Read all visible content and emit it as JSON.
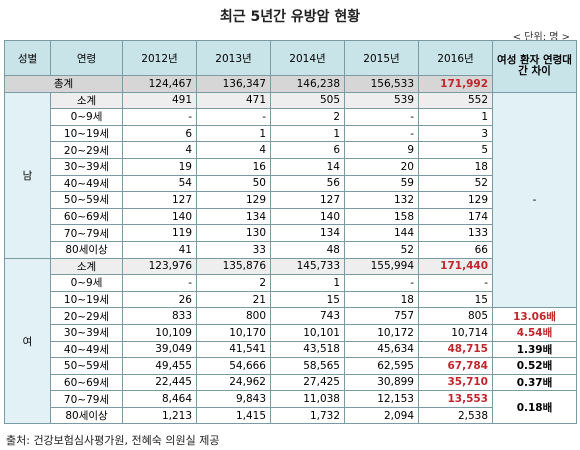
{
  "title": "최근 5년간 유방암 현황",
  "unit": "< 단위: 명 >",
  "header": [
    "성별",
    "연령",
    "2012년",
    "2013년",
    "2014년",
    "2015년",
    "2016년",
    "여성 환자 연령대 간 차이"
  ],
  "total": {
    "label": "총계",
    "values": [
      "124,467",
      "136,347",
      "146,238",
      "156,533",
      "171,992"
    ]
  },
  "groups": [
    {
      "sex": "남",
      "rows": [
        {
          "age": "소계",
          "values": [
            "491",
            "471",
            "505",
            "539",
            "552"
          ]
        },
        {
          "age": "0~9세",
          "values": [
            "-",
            "-",
            "2",
            "-",
            "1"
          ]
        },
        {
          "age": "10~19세",
          "values": [
            "6",
            "1",
            "1",
            "-",
            "3"
          ]
        },
        {
          "age": "20~29세",
          "values": [
            "4",
            "4",
            "6",
            "9",
            "5"
          ]
        },
        {
          "age": "30~39세",
          "values": [
            "19",
            "16",
            "14",
            "20",
            "18"
          ]
        },
        {
          "age": "40~49세",
          "values": [
            "54",
            "50",
            "56",
            "59",
            "52"
          ]
        },
        {
          "age": "50~59세",
          "values": [
            "127",
            "129",
            "127",
            "132",
            "129"
          ]
        },
        {
          "age": "60~69세",
          "values": [
            "140",
            "134",
            "140",
            "158",
            "174"
          ]
        },
        {
          "age": "70~79세",
          "values": [
            "119",
            "130",
            "134",
            "144",
            "133"
          ]
        },
        {
          "age": "80세이상",
          "values": [
            "41",
            "33",
            "48",
            "52",
            "66"
          ]
        }
      ]
    },
    {
      "sex": "여",
      "rows": [
        {
          "age": "소계",
          "values": [
            "123,976",
            "135,876",
            "145,733",
            "155,994",
            "171,440"
          ]
        },
        {
          "age": "0~9세",
          "values": [
            "-",
            "2",
            "1",
            "-",
            "-"
          ]
        },
        {
          "age": "10~19세",
          "values": [
            "26",
            "21",
            "15",
            "18",
            "15"
          ]
        },
        {
          "age": "20~29세",
          "values": [
            "833",
            "800",
            "743",
            "757",
            "805"
          ]
        },
        {
          "age": "30~39세",
          "values": [
            "10,109",
            "10,170",
            "10,101",
            "10,172",
            "10,714"
          ]
        },
        {
          "age": "40~49세",
          "values": [
            "39,049",
            "41,541",
            "43,518",
            "45,634",
            "48,715"
          ]
        },
        {
          "age": "50~59세",
          "values": [
            "49,455",
            "54,666",
            "58,565",
            "62,595",
            "67,784"
          ]
        },
        {
          "age": "60~69세",
          "values": [
            "22,445",
            "24,962",
            "27,425",
            "30,899",
            "35,710"
          ]
        },
        {
          "age": "70~79세",
          "values": [
            "8,464",
            "9,843",
            "11,038",
            "12,153",
            "13,553"
          ]
        },
        {
          "age": "80세이상",
          "values": [
            "1,213",
            "1,415",
            "1,732",
            "2,094",
            "2,538"
          ]
        }
      ]
    }
  ],
  "difference": [
    "-",
    "13.06배",
    "4.54배",
    "1.39배",
    "0.52배",
    "0.37배",
    "0.18배"
  ],
  "source": "출처: 건강보험심사평가원, 전혜숙 의원실 제공"
}
